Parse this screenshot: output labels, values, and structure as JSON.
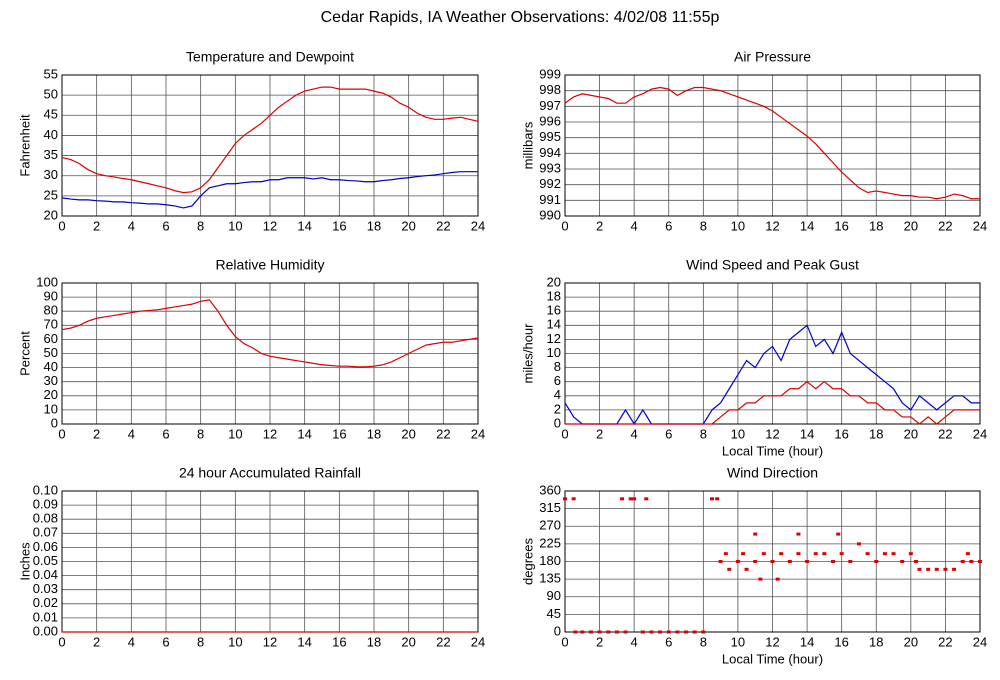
{
  "title": "Cedar Rapids, IA Weather Observations: 4/02/08 11:55p",
  "chart_data": [
    {
      "type": "line",
      "title": "Temperature and Dewpoint",
      "ylabel": "Fahrenheit",
      "x": [
        0,
        0.5,
        1,
        1.5,
        2,
        2.5,
        3,
        3.5,
        4,
        4.5,
        5,
        5.5,
        6,
        6.5,
        7,
        7.5,
        8,
        8.5,
        9,
        9.5,
        10,
        10.5,
        11,
        11.5,
        12,
        12.5,
        13,
        13.5,
        14,
        14.5,
        15,
        15.5,
        16,
        16.5,
        17,
        17.5,
        18,
        18.5,
        19,
        19.5,
        20,
        20.5,
        21,
        21.5,
        22,
        22.5,
        23,
        23.5,
        24
      ],
      "series": [
        {
          "color": "#dd0000",
          "values": [
            34.5,
            34,
            33,
            31.5,
            30.5,
            30,
            29.7,
            29.3,
            29,
            28.5,
            28,
            27.5,
            27,
            26.3,
            25.8,
            26,
            27,
            29,
            32,
            35,
            38,
            40,
            41.5,
            43,
            45,
            47,
            48.5,
            50,
            51,
            51.5,
            52,
            52,
            51.5,
            51.5,
            51.5,
            51.5,
            51,
            50.5,
            49.5,
            48,
            47,
            45.5,
            44.5,
            44,
            44,
            44.3,
            44.5,
            44,
            43.5
          ]
        },
        {
          "color": "#0000bb",
          "values": [
            24.5,
            24.2,
            24,
            24,
            23.8,
            23.7,
            23.5,
            23.5,
            23.3,
            23.2,
            23,
            23,
            22.8,
            22.5,
            22,
            22.5,
            25,
            27,
            27.5,
            28,
            28,
            28.3,
            28.5,
            28.5,
            29,
            29,
            29.5,
            29.5,
            29.5,
            29.2,
            29.5,
            29,
            29,
            28.8,
            28.7,
            28.5,
            28.5,
            28.8,
            29,
            29.3,
            29.5,
            29.8,
            30,
            30.2,
            30.5,
            30.8,
            31,
            31,
            31
          ]
        }
      ],
      "xlim": [
        0,
        24
      ],
      "ylim": [
        20,
        55
      ],
      "xticks": [
        0,
        2,
        4,
        6,
        8,
        10,
        12,
        14,
        16,
        18,
        20,
        22,
        24
      ],
      "yticks": [
        20,
        25,
        30,
        35,
        40,
        45,
        50,
        55
      ],
      "grid": true
    },
    {
      "type": "line",
      "title": "Air Pressure",
      "ylabel": "millibars",
      "x": [
        0,
        0.5,
        1,
        1.5,
        2,
        2.5,
        3,
        3.5,
        4,
        4.5,
        5,
        5.5,
        6,
        6.5,
        7,
        7.5,
        8,
        8.5,
        9,
        9.5,
        10,
        10.5,
        11,
        11.5,
        12,
        12.5,
        13,
        13.5,
        14,
        14.5,
        15,
        15.5,
        16,
        16.5,
        17,
        17.5,
        18,
        18.5,
        19,
        19.5,
        20,
        20.5,
        21,
        21.5,
        22,
        22.5,
        23,
        23.5,
        24
      ],
      "series": [
        {
          "color": "#dd0000",
          "values": [
            997.2,
            997.6,
            997.8,
            997.7,
            997.6,
            997.5,
            997.2,
            997.2,
            997.6,
            997.8,
            998.1,
            998.2,
            998.1,
            997.7,
            998,
            998.2,
            998.2,
            998.1,
            998,
            997.8,
            997.6,
            997.4,
            997.2,
            997,
            996.7,
            996.3,
            995.9,
            995.5,
            995.1,
            994.6,
            994,
            993.4,
            992.8,
            992.3,
            991.8,
            991.5,
            991.6,
            991.5,
            991.4,
            991.3,
            991.3,
            991.2,
            991.2,
            991.1,
            991.2,
            991.4,
            991.3,
            991.1,
            991.1
          ]
        }
      ],
      "xlim": [
        0,
        24
      ],
      "ylim": [
        990,
        999
      ],
      "xticks": [
        0,
        2,
        4,
        6,
        8,
        10,
        12,
        14,
        16,
        18,
        20,
        22,
        24
      ],
      "yticks": [
        990,
        991,
        992,
        993,
        994,
        995,
        996,
        997,
        998,
        999
      ],
      "grid": true
    },
    {
      "type": "line",
      "title": "Relative Humidity",
      "ylabel": "Percent",
      "x": [
        0,
        0.5,
        1,
        1.5,
        2,
        2.5,
        3,
        3.5,
        4,
        4.5,
        5,
        5.5,
        6,
        6.5,
        7,
        7.5,
        8,
        8.5,
        9,
        9.5,
        10,
        10.5,
        11,
        11.5,
        12,
        12.5,
        13,
        13.5,
        14,
        14.5,
        15,
        15.5,
        16,
        16.5,
        17,
        17.5,
        18,
        18.5,
        19,
        19.5,
        20,
        20.5,
        21,
        21.5,
        22,
        22.5,
        23,
        23.5,
        24
      ],
      "series": [
        {
          "color": "#dd0000",
          "values": [
            67,
            68,
            70,
            73,
            75,
            76,
            77,
            78,
            79,
            80,
            80.5,
            81,
            82,
            83,
            84,
            85,
            87,
            88,
            80,
            70,
            62,
            57,
            54,
            50,
            48,
            47,
            46,
            45,
            44,
            43,
            42,
            41.5,
            41,
            41,
            40.5,
            40.5,
            41,
            42,
            44,
            47,
            50,
            53,
            56,
            57,
            58,
            58,
            59,
            60,
            61
          ]
        }
      ],
      "xlim": [
        0,
        24
      ],
      "ylim": [
        0,
        100
      ],
      "xticks": [
        0,
        2,
        4,
        6,
        8,
        10,
        12,
        14,
        16,
        18,
        20,
        22,
        24
      ],
      "yticks": [
        0,
        10,
        20,
        30,
        40,
        50,
        60,
        70,
        80,
        90,
        100
      ],
      "grid": true
    },
    {
      "type": "line",
      "title": "Wind Speed and Peak Gust",
      "ylabel": "miles/hour",
      "xlabel": "Local Time (hour)",
      "x": [
        0,
        0.5,
        1,
        1.5,
        2,
        2.5,
        3,
        3.5,
        4,
        4.5,
        5,
        5.5,
        6,
        6.5,
        7,
        7.5,
        8,
        8.5,
        9,
        9.5,
        10,
        10.5,
        11,
        11.5,
        12,
        12.5,
        13,
        13.5,
        14,
        14.5,
        15,
        15.5,
        16,
        16.5,
        17,
        17.5,
        18,
        18.5,
        19,
        19.5,
        20,
        20.5,
        21,
        21.5,
        22,
        22.5,
        23,
        23.5,
        24
      ],
      "series": [
        {
          "color": "#0000dd",
          "values": [
            3,
            1,
            0,
            0,
            0,
            0,
            0,
            2,
            0,
            2,
            0,
            0,
            0,
            0,
            0,
            0,
            0,
            2,
            3,
            5,
            7,
            9,
            8,
            10,
            11,
            9,
            12,
            13,
            14,
            11,
            12,
            10,
            13,
            10,
            9,
            8,
            7,
            6,
            5,
            3,
            2,
            4,
            3,
            2,
            3,
            4,
            4,
            3,
            3
          ]
        },
        {
          "color": "#dd0000",
          "values": [
            0,
            0,
            0,
            0,
            0,
            0,
            0,
            0,
            0,
            0,
            0,
            0,
            0,
            0,
            0,
            0,
            0,
            0,
            1,
            2,
            2,
            3,
            3,
            4,
            4,
            4,
            5,
            5,
            6,
            5,
            6,
            5,
            5,
            4,
            4,
            3,
            3,
            2,
            2,
            1,
            1,
            0,
            1,
            0,
            1,
            2,
            2,
            2,
            2
          ]
        }
      ],
      "xlim": [
        0,
        24
      ],
      "ylim": [
        0,
        20
      ],
      "xticks": [
        0,
        2,
        4,
        6,
        8,
        10,
        12,
        14,
        16,
        18,
        20,
        22,
        24
      ],
      "yticks": [
        0,
        2,
        4,
        6,
        8,
        10,
        12,
        14,
        16,
        18,
        20
      ],
      "grid": true
    },
    {
      "type": "line",
      "title": "24 hour Accumulated Rainfall",
      "ylabel": "Inches",
      "x": [
        0,
        24
      ],
      "series": [
        {
          "color": "#dd0000",
          "values": [
            0,
            0
          ]
        }
      ],
      "xlim": [
        0,
        24
      ],
      "ylim": [
        0,
        0.1
      ],
      "xticks": [
        0,
        2,
        4,
        6,
        8,
        10,
        12,
        14,
        16,
        18,
        20,
        22,
        24
      ],
      "yticks": [
        {
          "value": 0,
          "label": "0.00"
        },
        {
          "value": 0.01,
          "label": "0.01"
        },
        {
          "value": 0.02,
          "label": "0.02"
        },
        {
          "value": 0.03,
          "label": "0.03"
        },
        {
          "value": 0.04,
          "label": "0.04"
        },
        {
          "value": 0.05,
          "label": "0.05"
        },
        {
          "value": 0.06,
          "label": "0.06"
        },
        {
          "value": 0.07,
          "label": "0.07"
        },
        {
          "value": 0.08,
          "label": "0.08"
        },
        {
          "value": 0.09,
          "label": "0.09"
        },
        {
          "value": 0.1,
          "label": "0.10"
        }
      ],
      "grid": true
    },
    {
      "type": "scatter",
      "title": "Wind Direction",
      "ylabel": "degrees",
      "xlabel": "Local Time (hour)",
      "color": "#dd0000",
      "x": [
        0,
        0.5,
        0.6,
        1,
        1.5,
        2,
        2.5,
        3,
        3.3,
        3.5,
        3.8,
        4,
        4.5,
        4.7,
        5,
        5.5,
        6,
        6.5,
        7,
        7.5,
        8,
        8.5,
        8.8,
        9,
        9.3,
        9.5,
        10,
        10.3,
        10.5,
        11,
        11,
        11.3,
        11.5,
        12,
        12.3,
        12.5,
        13,
        13.5,
        13.5,
        14,
        14.5,
        15,
        15.5,
        15.8,
        16,
        16.5,
        17,
        17.5,
        18,
        18.5,
        19,
        19.5,
        20,
        20.3,
        20.5,
        21,
        21.5,
        22,
        22.5,
        23,
        23.3,
        23.5,
        24
      ],
      "values": [
        340,
        340,
        0,
        0,
        0,
        0,
        0,
        0,
        340,
        0,
        340,
        340,
        0,
        340,
        0,
        0,
        0,
        0,
        0,
        0,
        0,
        340,
        340,
        180,
        200,
        160,
        180,
        200,
        160,
        180,
        250,
        135,
        200,
        180,
        135,
        200,
        180,
        200,
        250,
        180,
        200,
        200,
        180,
        250,
        200,
        180,
        225,
        200,
        180,
        200,
        200,
        180,
        200,
        180,
        160,
        160,
        160,
        160,
        160,
        180,
        200,
        180,
        180
      ],
      "xlim": [
        0,
        24
      ],
      "ylim": [
        0,
        360
      ],
      "xticks": [
        0,
        2,
        4,
        6,
        8,
        10,
        12,
        14,
        16,
        18,
        20,
        22,
        24
      ],
      "yticks": [
        0,
        45,
        90,
        135,
        180,
        225,
        270,
        315,
        360
      ],
      "grid": true
    }
  ]
}
